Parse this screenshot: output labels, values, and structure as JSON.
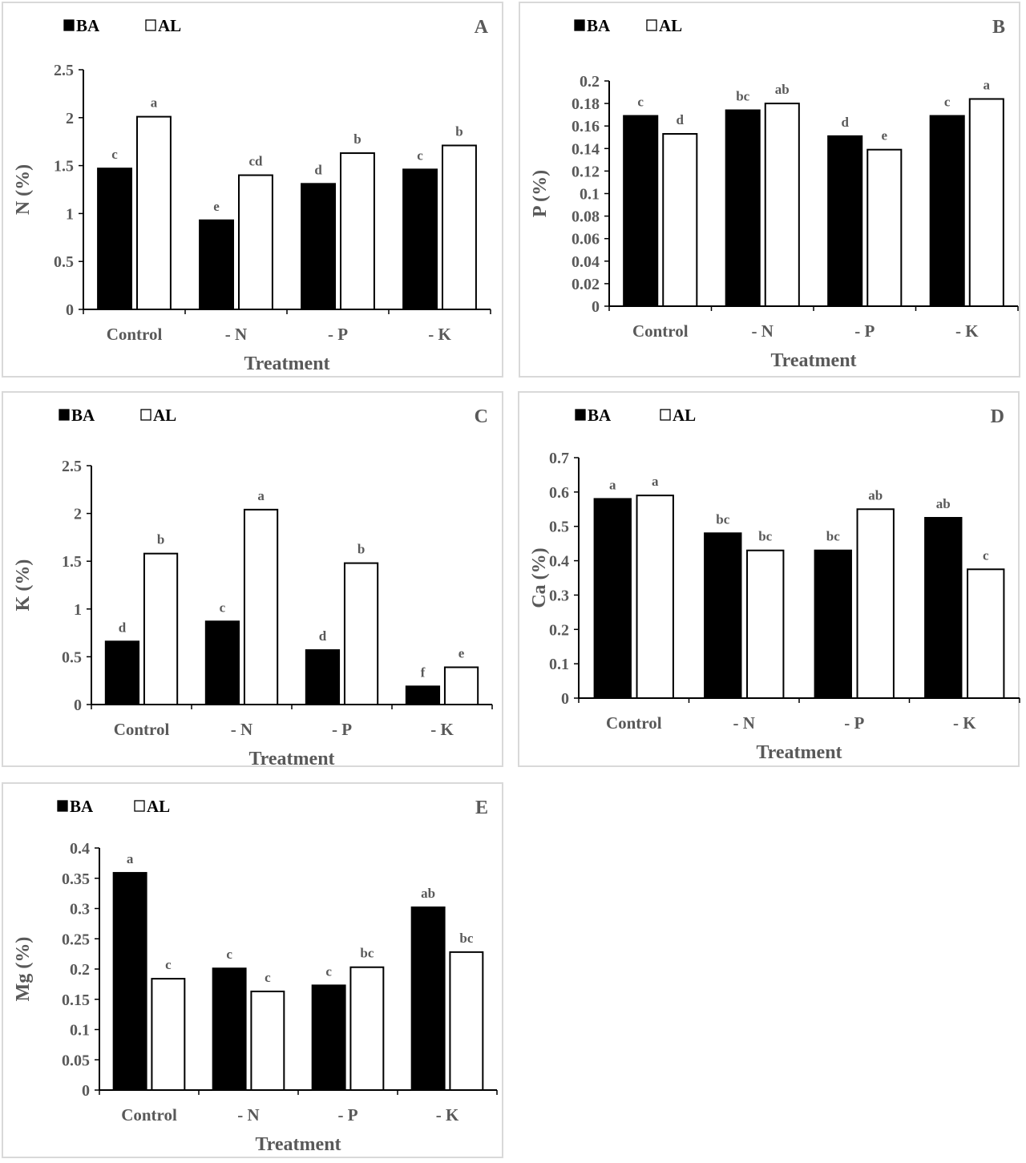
{
  "chart_data": [
    {
      "type": "bar",
      "panel": "A",
      "ylabel": "N (%)",
      "xlabel": "Treatment",
      "ylim": [
        0,
        2.5
      ],
      "yticks": [
        "0",
        "0.5",
        "1",
        "1.5",
        "2",
        "2.5"
      ],
      "ytick_values": [
        0,
        0.5,
        1,
        1.5,
        2,
        2.5
      ],
      "categories": [
        "Control",
        "- N",
        "- P",
        "- K"
      ],
      "series": [
        {
          "name": "BA",
          "color": "#000000",
          "values": [
            1.47,
            0.93,
            1.31,
            1.46
          ],
          "letters": [
            "c",
            "e",
            "d",
            "c"
          ]
        },
        {
          "name": "AL",
          "color": "#ffffff",
          "values": [
            2.01,
            1.4,
            1.63,
            1.71
          ],
          "letters": [
            "a",
            "cd",
            "b",
            "b"
          ]
        }
      ],
      "legend": "top-left",
      "grid": false
    },
    {
      "type": "bar",
      "panel": "B",
      "ylabel": "P (%)",
      "xlabel": "Treatment",
      "ylim": [
        0,
        0.2
      ],
      "yticks": [
        "0",
        "0.02",
        "0.04",
        "0.06",
        "0.08",
        "0.1",
        "0.12",
        "0.14",
        "0.16",
        "0.18",
        "0.2"
      ],
      "ytick_values": [
        0,
        0.02,
        0.04,
        0.06,
        0.08,
        0.1,
        0.12,
        0.14,
        0.16,
        0.18,
        0.2
      ],
      "categories": [
        "Control",
        "- N",
        "- P",
        "- K"
      ],
      "series": [
        {
          "name": "BA",
          "color": "#000000",
          "values": [
            0.169,
            0.174,
            0.151,
            0.169
          ],
          "letters": [
            "c",
            "bc",
            "d",
            "c"
          ]
        },
        {
          "name": "AL",
          "color": "#ffffff",
          "values": [
            0.153,
            0.18,
            0.139,
            0.184
          ],
          "letters": [
            "d",
            "ab",
            "e",
            "a"
          ]
        }
      ],
      "legend": "top-left",
      "grid": false
    },
    {
      "type": "bar",
      "panel": "C",
      "ylabel": "K (%)",
      "xlabel": "Treatment",
      "ylim": [
        0,
        2.5
      ],
      "yticks": [
        "0",
        "0.5",
        "1",
        "1.5",
        "2",
        "2.5"
      ],
      "ytick_values": [
        0,
        0.5,
        1,
        1.5,
        2,
        2.5
      ],
      "categories": [
        "Control",
        "- N",
        "- P",
        "- K"
      ],
      "series": [
        {
          "name": "BA",
          "color": "#000000",
          "values": [
            0.66,
            0.87,
            0.57,
            0.19
          ],
          "letters": [
            "d",
            "c",
            "d",
            "f"
          ]
        },
        {
          "name": "AL",
          "color": "#ffffff",
          "values": [
            1.58,
            2.04,
            1.48,
            0.39
          ],
          "letters": [
            "b",
            "a",
            "b",
            "e"
          ]
        }
      ],
      "legend": "top-left",
      "grid": false
    },
    {
      "type": "bar",
      "panel": "D",
      "ylabel": "Ca (%)",
      "xlabel": "Treatment",
      "ylim": [
        0,
        0.7
      ],
      "yticks": [
        "0",
        "0.1",
        "0.2",
        "0.3",
        "0.4",
        "0.5",
        "0.6",
        "0.7"
      ],
      "ytick_values": [
        0,
        0.1,
        0.2,
        0.3,
        0.4,
        0.5,
        0.6,
        0.7
      ],
      "categories": [
        "Control",
        "- N",
        "- P",
        "- K"
      ],
      "series": [
        {
          "name": "BA",
          "color": "#000000",
          "values": [
            0.58,
            0.48,
            0.43,
            0.525
          ],
          "letters": [
            "a",
            "bc",
            "bc",
            "ab"
          ]
        },
        {
          "name": "AL",
          "color": "#ffffff",
          "values": [
            0.59,
            0.43,
            0.55,
            0.375
          ],
          "letters": [
            "a",
            "bc",
            "ab",
            "c"
          ]
        }
      ],
      "legend": "top-left",
      "grid": false
    },
    {
      "type": "bar",
      "panel": "E",
      "ylabel": "Mg (%)",
      "xlabel": "Treatment",
      "ylim": [
        0,
        0.4
      ],
      "yticks": [
        "0",
        "0.05",
        "0.1",
        "0.15",
        "0.2",
        "0.25",
        "0.3",
        "0.35",
        "0.4"
      ],
      "ytick_values": [
        0,
        0.05,
        0.1,
        0.15,
        0.2,
        0.25,
        0.3,
        0.35,
        0.4
      ],
      "categories": [
        "Control",
        "- N",
        "- P",
        "- K"
      ],
      "series": [
        {
          "name": "BA",
          "color": "#000000",
          "values": [
            0.359,
            0.201,
            0.173,
            0.302
          ],
          "letters": [
            "a",
            "c",
            "c",
            "ab"
          ]
        },
        {
          "name": "AL",
          "color": "#ffffff",
          "values": [
            0.184,
            0.163,
            0.203,
            0.228
          ],
          "letters": [
            "c",
            "c",
            "bc",
            "bc"
          ]
        }
      ],
      "legend": "top-left",
      "grid": false
    }
  ]
}
